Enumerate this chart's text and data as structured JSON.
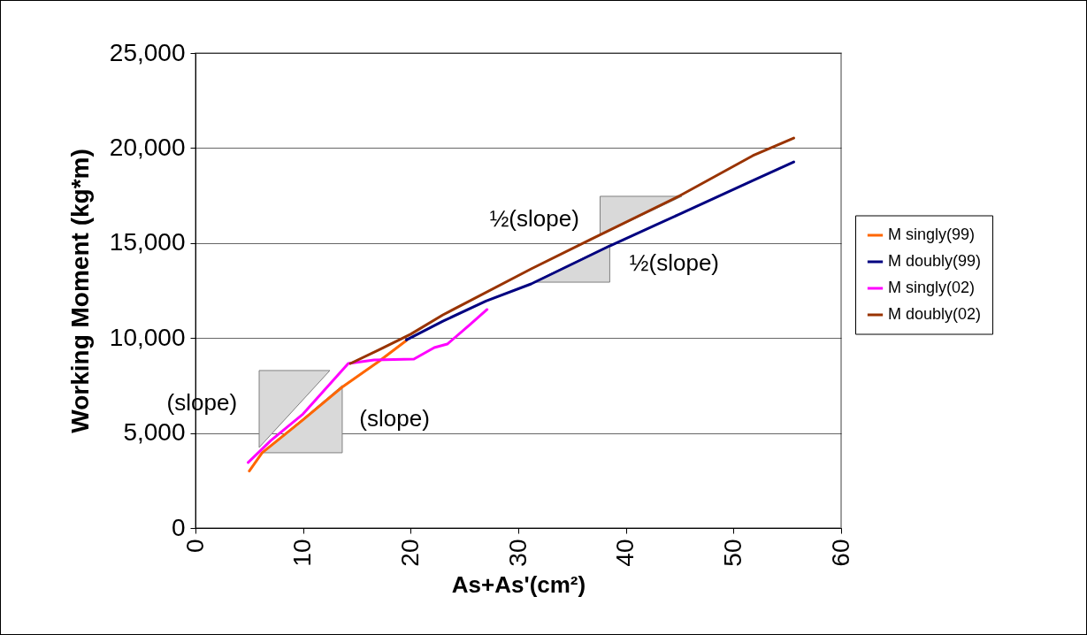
{
  "chart_data": {
    "type": "line",
    "xlabel": "As+As'(cm²)",
    "ylabel": "Working Moment (kg*m)",
    "xlim": [
      0,
      60
    ],
    "xticks": [
      0,
      10,
      20,
      30,
      40,
      50,
      60
    ],
    "ylim": [
      0,
      25000
    ],
    "yticks": [
      0,
      {
        "value": 5000,
        "label": "5,000"
      },
      {
        "value": 10000,
        "label": "10,000"
      },
      {
        "value": 15000,
        "label": "15,000"
      },
      {
        "value": 20000,
        "label": "20,000"
      },
      {
        "value": 25000,
        "label": "25,000"
      }
    ],
    "grid": "y",
    "legend": "right",
    "marker": "none",
    "line_style": "solid",
    "series": [
      {
        "name": "M singly(99)",
        "color": "#ff6600",
        "x": [
          5,
          6.2,
          10,
          13.6,
          17,
          19.6
        ],
        "values": [
          3000,
          3960,
          5700,
          7400,
          8750,
          9870
        ]
      },
      {
        "name": "M doubly(99)",
        "color": "#000080",
        "x": [
          19.6,
          23,
          27,
          31.2,
          38.5,
          44.9,
          51.8,
          55.6
        ],
        "values": [
          9900,
          10890,
          11950,
          12850,
          14850,
          16500,
          18290,
          19270
        ]
      },
      {
        "name": "M singly(02)",
        "color": "#ff00ff",
        "x": [
          4.9,
          7,
          10,
          14.2,
          16.6,
          20.3,
          22.2,
          23.4,
          25.5,
          27.1
        ],
        "values": [
          3450,
          4600,
          6000,
          8660,
          8850,
          8890,
          9500,
          9680,
          10700,
          11500
        ]
      },
      {
        "name": "M doubly(02)",
        "color": "#993300",
        "x": [
          14.4,
          17,
          20,
          23,
          31.2,
          36.7,
          44.9,
          51.8,
          55.6
        ],
        "values": [
          8660,
          9360,
          10200,
          11220,
          13640,
          15180,
          17460,
          19600,
          20530
        ]
      }
    ],
    "annotations": [
      "(slope)",
      "(slope)",
      "½(slope)",
      "½(slope)"
    ]
  }
}
